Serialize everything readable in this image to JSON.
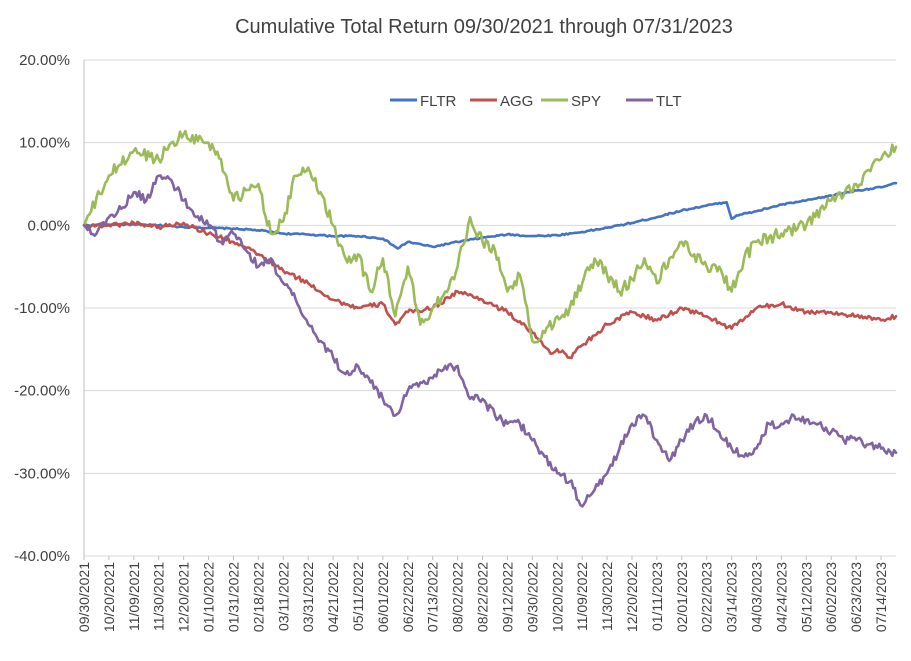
{
  "chart_data": {
    "type": "line",
    "title": "Cumulative Total Return 09/30/2021  through 07/31/2023",
    "xlabel": "",
    "ylabel": "",
    "ylim": [
      -40,
      20
    ],
    "y_ticks": [
      20,
      10,
      0,
      -10,
      -20,
      -30,
      -40
    ],
    "y_tick_labels": [
      "20.00%",
      "10.00%",
      "0.00%",
      "-10.00%",
      "-20.00%",
      "-30.00%",
      "-40.00%"
    ],
    "grid": true,
    "legend_position": "top-center",
    "x_tick_labels": [
      "09/30/2021",
      "10/20/2021",
      "11/09/2021",
      "11/30/2021",
      "12/20/2021",
      "01/10/2022",
      "01/31/2022",
      "02/18/2022",
      "03/11/2022",
      "03/31/2022",
      "04/21/2022",
      "05/11/2022",
      "06/01/2022",
      "06/22/2022",
      "07/13/2022",
      "08/02/2022",
      "08/22/2022",
      "09/12/2022",
      "09/30/2022",
      "10/20/2022",
      "11/09/2022",
      "11/30/2022",
      "12/20/2022",
      "01/11/2023",
      "02/01/2023",
      "02/22/2023",
      "03/14/2023",
      "04/03/2023",
      "04/24/2023",
      "05/12/2023",
      "06/02/2023",
      "06/23/2023",
      "07/14/2023"
    ],
    "x_range": [
      0,
      32.6
    ],
    "series": [
      {
        "name": "FLTR",
        "color": "#4472C4",
        "x": [
          0,
          1,
          2,
          3,
          4,
          5,
          6,
          7,
          8,
          9,
          10,
          11,
          12,
          12.6,
          13,
          14,
          15,
          16,
          17,
          18,
          19,
          20,
          21,
          22,
          23,
          24,
          25,
          25.8,
          26.0,
          26.2,
          27,
          28,
          29,
          30,
          31,
          32,
          32.6
        ],
        "values": [
          0.0,
          0.1,
          0.1,
          0.0,
          -0.2,
          -0.3,
          -0.4,
          -0.6,
          -1.0,
          -1.1,
          -1.3,
          -1.3,
          -1.6,
          -2.8,
          -2.0,
          -2.6,
          -2.0,
          -1.5,
          -1.1,
          -1.3,
          -1.2,
          -0.8,
          -0.3,
          0.3,
          1.0,
          1.8,
          2.4,
          2.8,
          0.8,
          1.2,
          1.7,
          2.5,
          3.0,
          3.6,
          4.2,
          4.6,
          5.1
        ]
      },
      {
        "name": "AGG",
        "color": "#C0504D",
        "x": [
          0,
          1,
          2,
          3,
          4,
          5,
          6,
          7,
          8,
          9,
          10,
          11,
          12,
          12.5,
          13,
          14,
          15,
          16,
          17,
          18,
          18.8,
          19,
          19.5,
          20,
          21,
          22,
          23,
          24,
          25,
          26,
          27,
          28,
          29,
          30,
          31,
          32,
          32.6
        ],
        "values": [
          0.0,
          0.0,
          0.3,
          -0.2,
          0.3,
          -1.0,
          -2.0,
          -3.5,
          -5.5,
          -7.0,
          -9.0,
          -10.0,
          -9.5,
          -12.0,
          -10.5,
          -10.0,
          -8.0,
          -9.0,
          -10.5,
          -13.0,
          -15.5,
          -15.0,
          -16.0,
          -14.5,
          -12.0,
          -10.5,
          -11.5,
          -10.0,
          -11.0,
          -12.5,
          -10.0,
          -9.5,
          -10.5,
          -10.5,
          -11.0,
          -11.5,
          -11.0
        ]
      },
      {
        "name": "SPY",
        "color": "#9BBB59",
        "x": [
          0,
          1,
          2,
          3,
          3.5,
          4,
          5,
          5.5,
          6,
          7,
          7.5,
          8,
          8.5,
          9,
          9.5,
          10,
          10.5,
          11,
          11.5,
          12,
          12.5,
          13,
          13.5,
          14,
          14.5,
          15,
          15.5,
          16,
          16.5,
          17,
          17.5,
          18,
          18.5,
          19,
          19.5,
          20,
          20.5,
          21,
          21.5,
          22,
          22.5,
          23,
          23.5,
          24,
          24.5,
          25,
          25.5,
          26,
          26.5,
          27,
          28,
          29,
          30,
          31,
          32,
          32.6
        ],
        "values": [
          0.0,
          6.0,
          9.0,
          8.0,
          10.0,
          11.0,
          10.0,
          8.0,
          3.0,
          5.0,
          -1.0,
          0.5,
          6.0,
          7.0,
          4.0,
          0.0,
          -4.0,
          -3.5,
          -8.0,
          -4.0,
          -11.0,
          -5.0,
          -12.0,
          -10.0,
          -8.0,
          -5.0,
          1.0,
          -2.0,
          -3.0,
          -8.0,
          -6.0,
          -14.0,
          -13.0,
          -11.0,
          -10.0,
          -7.0,
          -4.0,
          -6.0,
          -8.0,
          -6.5,
          -4.0,
          -7.0,
          -4.0,
          -2.0,
          -3.5,
          -5.0,
          -5.0,
          -8.0,
          -4.0,
          -2.0,
          -1.0,
          0.0,
          3.0,
          5.0,
          8.0,
          9.5
        ]
      },
      {
        "name": "TLT",
        "color": "#8064A2",
        "x": [
          0,
          0.5,
          1,
          1.5,
          2,
          2.5,
          3,
          3.5,
          4,
          4.5,
          5,
          5.5,
          6,
          6.5,
          7,
          7.5,
          8,
          8.5,
          9,
          9.5,
          10,
          10.5,
          11,
          11.5,
          12,
          12.5,
          13,
          13.5,
          14,
          14.5,
          15,
          15.5,
          16,
          16.5,
          17,
          17.5,
          18,
          18.5,
          19,
          19.5,
          20,
          20.5,
          21,
          21.5,
          22,
          22.5,
          23,
          23.5,
          24,
          24.5,
          25,
          25.5,
          26,
          26.5,
          27,
          27.5,
          28,
          28.5,
          29,
          29.5,
          30,
          30.5,
          31,
          31.5,
          32,
          32.6
        ],
        "values": [
          0.0,
          -1.0,
          1.0,
          2.0,
          4.0,
          3.0,
          6.0,
          5.5,
          3.0,
          1.0,
          0.0,
          -2.0,
          -1.0,
          -3.0,
          -5.0,
          -4.0,
          -7.0,
          -9.0,
          -12.0,
          -14.0,
          -16.0,
          -18.0,
          -17.0,
          -19.0,
          -21.0,
          -23.0,
          -20.0,
          -19.0,
          -18.5,
          -17.0,
          -17.0,
          -21.0,
          -21.0,
          -23.0,
          -24.0,
          -24.0,
          -26.0,
          -28.0,
          -30.0,
          -31.0,
          -34.0,
          -32.0,
          -30.0,
          -27.0,
          -24.0,
          -23.0,
          -26.0,
          -28.5,
          -26.0,
          -24.0,
          -23.0,
          -25.0,
          -27.0,
          -28.0,
          -27.0,
          -24.0,
          -24.0,
          -23.0,
          -23.5,
          -24.0,
          -25.0,
          -26.0,
          -26.0,
          -26.5,
          -27.0,
          -27.5
        ]
      }
    ]
  }
}
